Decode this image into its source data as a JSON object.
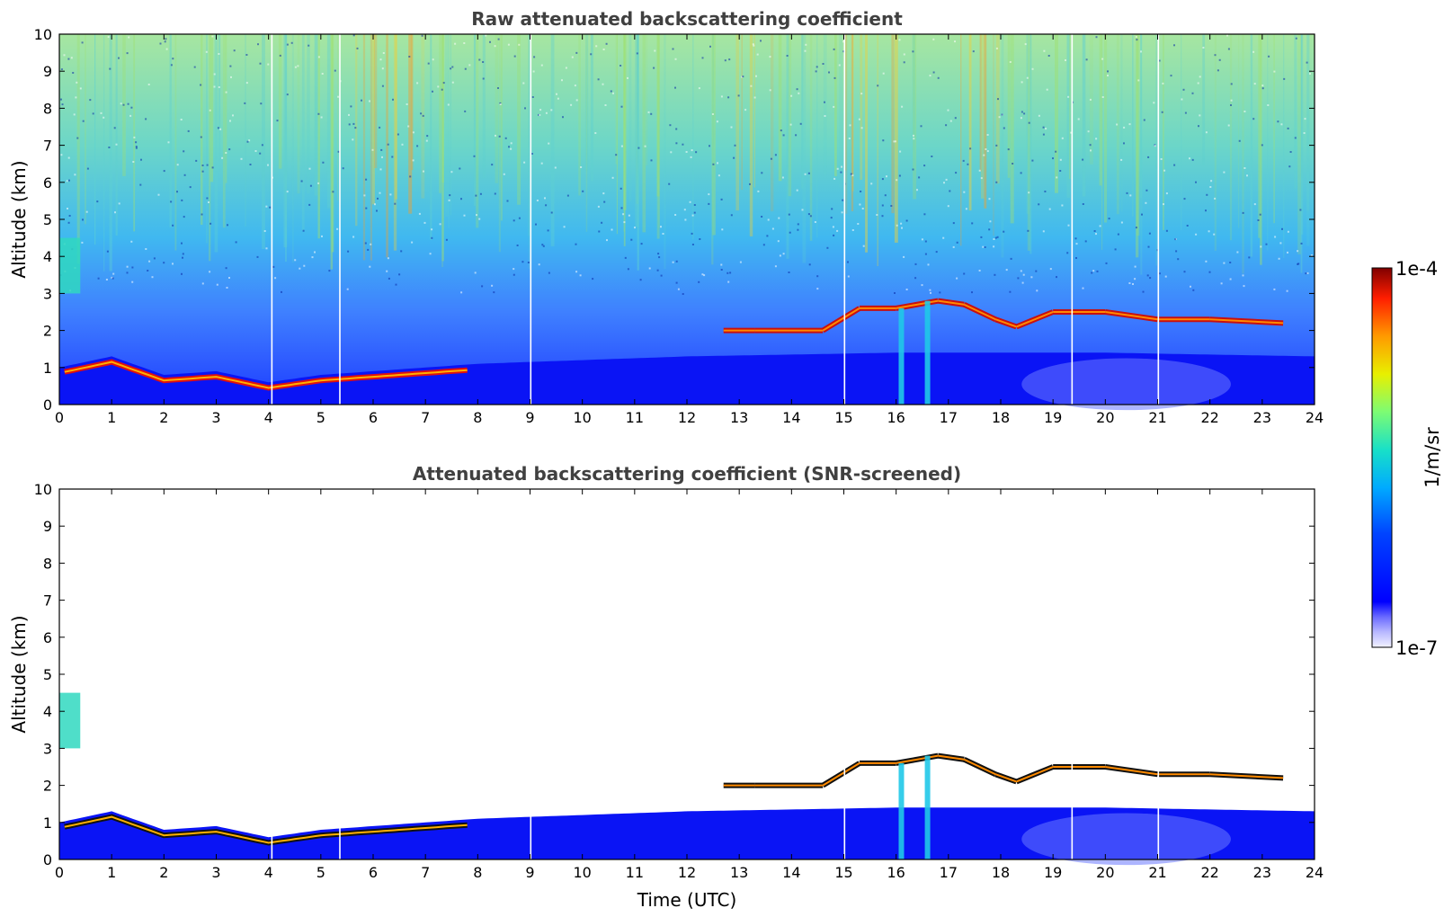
{
  "chart_data": [
    {
      "type": "heatmap",
      "title": "Raw attenuated backscattering coefficient",
      "xlabel": "",
      "ylabel": "Altitude (km)",
      "xlim": [
        0,
        24
      ],
      "ylim": [
        0,
        10
      ],
      "x_ticks": [
        "0",
        "1",
        "2",
        "3",
        "4",
        "5",
        "6",
        "7",
        "8",
        "9",
        "10",
        "11",
        "12",
        "13",
        "14",
        "15",
        "16",
        "17",
        "18",
        "19",
        "20",
        "21",
        "22",
        "23",
        "24"
      ],
      "y_ticks": [
        "0",
        "1",
        "2",
        "3",
        "4",
        "5",
        "6",
        "7",
        "8",
        "9",
        "10"
      ],
      "colormap": "jet",
      "features": {
        "boundary_layer_top_km": [
          {
            "t": 0,
            "alt": 1.0
          },
          {
            "t": 1,
            "alt": 1.3
          },
          {
            "t": 2,
            "alt": 0.8
          },
          {
            "t": 3,
            "alt": 0.9
          },
          {
            "t": 4,
            "alt": 0.6
          },
          {
            "t": 5,
            "alt": 0.8
          },
          {
            "t": 6,
            "alt": 0.9
          },
          {
            "t": 7,
            "alt": 1.0
          },
          {
            "t": 8,
            "alt": 1.1
          },
          {
            "t": 12,
            "alt": 1.3
          },
          {
            "t": 16,
            "alt": 1.4
          },
          {
            "t": 20,
            "alt": 1.4
          },
          {
            "t": 24,
            "alt": 1.3
          }
        ],
        "cloud_layers": [
          {
            "t": 12.7,
            "alt": 2.0
          },
          {
            "t": 13.3,
            "alt": 2.0
          },
          {
            "t": 14.6,
            "alt": 2.0
          },
          {
            "t": 15.3,
            "alt": 2.6
          },
          {
            "t": 16.0,
            "alt": 2.6
          },
          {
            "t": 16.8,
            "alt": 2.8
          },
          {
            "t": 17.3,
            "alt": 2.7
          },
          {
            "t": 17.9,
            "alt": 2.3
          },
          {
            "t": 18.3,
            "alt": 2.1
          },
          {
            "t": 19.0,
            "alt": 2.5
          },
          {
            "t": 20.0,
            "alt": 2.5
          },
          {
            "t": 21.0,
            "alt": 2.3
          },
          {
            "t": 22.0,
            "alt": 2.3
          },
          {
            "t": 23.4,
            "alt": 2.2
          }
        ],
        "aerosol_plume": {
          "t_start": 0.0,
          "t_end": 0.4,
          "alt_bottom": 3.0,
          "alt_top": 4.5
        },
        "precipitation_fallstreaks": [
          {
            "t": 16.1,
            "alt_top": 2.6
          },
          {
            "t": 16.6,
            "alt_top": 2.8
          }
        ],
        "data_gaps_t": [
          4.05,
          5.35,
          9.0,
          15.0,
          19.35,
          21.0
        ]
      }
    },
    {
      "type": "heatmap",
      "title": "Attenuated backscattering coefficient (SNR-screened)",
      "xlabel": "Time (UTC)",
      "ylabel": "Altitude (km)",
      "xlim": [
        0,
        24
      ],
      "ylim": [
        0,
        10
      ],
      "x_ticks": [
        "0",
        "1",
        "2",
        "3",
        "4",
        "5",
        "6",
        "7",
        "8",
        "9",
        "10",
        "11",
        "12",
        "13",
        "14",
        "15",
        "16",
        "17",
        "18",
        "19",
        "20",
        "21",
        "22",
        "23",
        "24"
      ],
      "y_ticks": [
        "0",
        "1",
        "2",
        "3",
        "4",
        "5",
        "6",
        "7",
        "8",
        "9",
        "10"
      ],
      "colormap": "jet",
      "screening": "noise above boundary layer removed"
    }
  ],
  "colorbar": {
    "label": "1/m/sr",
    "max_label": "1e-4",
    "min_label": "1e-7",
    "scale": "log",
    "range": [
      1e-07,
      0.0001
    ]
  }
}
